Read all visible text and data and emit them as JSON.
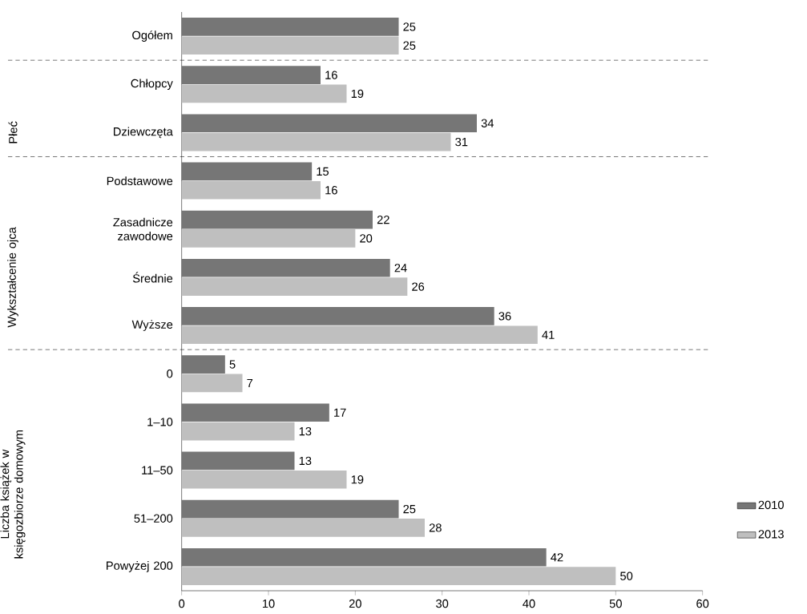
{
  "chart_data": {
    "type": "bar",
    "orientation": "horizontal",
    "categories": [
      "Ogółem",
      "Chłopcy",
      "Dziewczęta",
      "Podstawowe",
      "Zasadnicze zawodowe",
      "Średnie",
      "Wyższe",
      "0",
      "1–10",
      "11–50",
      "51–200",
      "Powyżej 200"
    ],
    "series": [
      {
        "name": "2010",
        "color": "#767676",
        "values": [
          25,
          16,
          34,
          15,
          22,
          24,
          36,
          5,
          17,
          13,
          25,
          42
        ]
      },
      {
        "name": "2013",
        "color": "#bfbfbf",
        "values": [
          25,
          19,
          31,
          16,
          20,
          26,
          41,
          7,
          13,
          19,
          28,
          50
        ]
      }
    ],
    "xlim": [
      0,
      60
    ],
    "xticks": [
      0,
      10,
      20,
      30,
      40,
      50,
      60
    ],
    "data_labels": true,
    "legend": "bottom right",
    "grid": false,
    "annotations": [
      "Płeć",
      "Wykształcenie ojca",
      "Liczba książek w księgozbiorze domowym"
    ]
  }
}
